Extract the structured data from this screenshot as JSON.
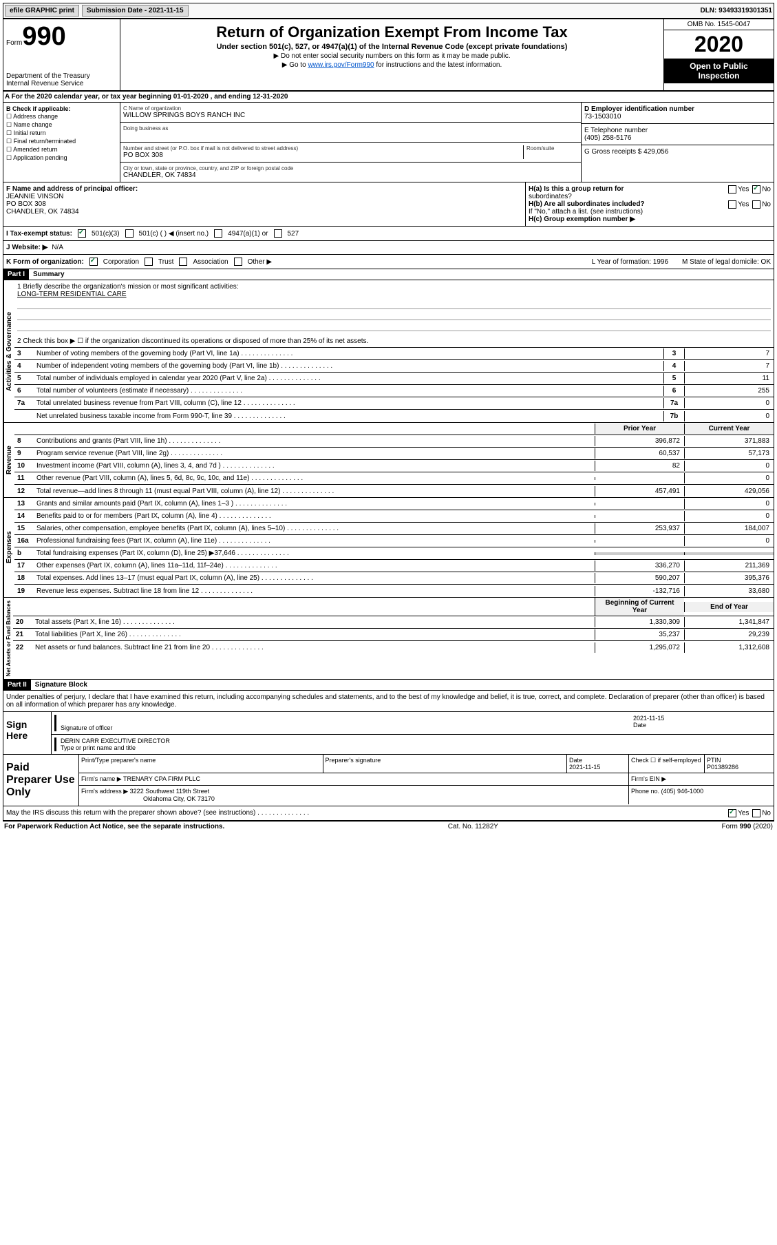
{
  "topbar": {
    "efile": "efile GRAPHIC print",
    "submission_label": "Submission Date - 2021-11-15",
    "dln": "DLN: 93493319301351"
  },
  "header": {
    "form_prefix": "Form",
    "form_num": "990",
    "dept": "Department of the Treasury",
    "irs": "Internal Revenue Service",
    "title": "Return of Organization Exempt From Income Tax",
    "sub": "Under section 501(c), 527, or 4947(a)(1) of the Internal Revenue Code (except private foundations)",
    "note1": "▶ Do not enter social security numbers on this form as it may be made public.",
    "note2_pre": "▶ Go to ",
    "note2_link": "www.irs.gov/Form990",
    "note2_post": " for instructions and the latest information.",
    "omb": "OMB No. 1545-0047",
    "year": "2020",
    "inspect1": "Open to Public",
    "inspect2": "Inspection"
  },
  "row_a": "A For the 2020 calendar year, or tax year beginning 01-01-2020   , and ending 12-31-2020",
  "box_b": {
    "title": "B Check if applicable:",
    "items": [
      "Address change",
      "Name change",
      "Initial return",
      "Final return/terminated",
      "Amended return",
      "Application pending"
    ]
  },
  "box_c": {
    "label_name": "C Name of organization",
    "name": "WILLOW SPRINGS BOYS RANCH INC",
    "dba_label": "Doing business as",
    "addr_label": "Number and street (or P.O. box if mail is not delivered to street address)",
    "room_label": "Room/suite",
    "addr": "PO BOX 308",
    "city_label": "City or town, state or province, country, and ZIP or foreign postal code",
    "city": "CHANDLER, OK  74834"
  },
  "box_d": {
    "label": "D Employer identification number",
    "val": "73-1503010"
  },
  "box_e": {
    "label": "E Telephone number",
    "val": "(405) 258-5176"
  },
  "box_g": {
    "label": "G Gross receipts $ 429,056"
  },
  "box_f": {
    "label": "F  Name and address of principal officer:",
    "name": "JEANNIE VINSON",
    "addr1": "PO BOX 308",
    "addr2": "CHANDLER, OK  74834"
  },
  "box_h": {
    "a": "H(a)  Is this a group return for",
    "a2": "subordinates?",
    "b": "H(b)  Are all subordinates included?",
    "note": "If \"No,\" attach a list. (see instructions)",
    "c": "H(c)  Group exemption number ▶",
    "yes": "Yes",
    "no": "No"
  },
  "row_i": {
    "label": "I  Tax-exempt status:",
    "c3": "501(c)(3)",
    "c": "501(c) (  ) ◀ (insert no.)",
    "a1": "4947(a)(1) or",
    "527": "527"
  },
  "row_j": {
    "label": "J  Website: ▶",
    "val": "N/A"
  },
  "row_k": {
    "label": "K Form of organization:",
    "corp": "Corporation",
    "trust": "Trust",
    "assoc": "Association",
    "other": "Other ▶",
    "l_label": "L Year of formation: 1996",
    "m_label": "M State of legal domicile: OK"
  },
  "part1": {
    "tag": "Part I",
    "title": "Summary"
  },
  "summary": {
    "q1": "1  Briefly describe the organization's mission or most significant activities:",
    "mission": "LONG-TERM RESIDENTIAL CARE",
    "q2": "2  Check this box ▶ ☐  if the organization discontinued its operations or disposed of more than 25% of its net assets.",
    "lines_ag": [
      {
        "n": "3",
        "d": "Number of voting members of the governing body (Part VI, line 1a)",
        "box": "3",
        "v": "7"
      },
      {
        "n": "4",
        "d": "Number of independent voting members of the governing body (Part VI, line 1b)",
        "box": "4",
        "v": "7"
      },
      {
        "n": "5",
        "d": "Total number of individuals employed in calendar year 2020 (Part V, line 2a)",
        "box": "5",
        "v": "11"
      },
      {
        "n": "6",
        "d": "Total number of volunteers (estimate if necessary)",
        "box": "6",
        "v": "255"
      },
      {
        "n": "7a",
        "d": "Total unrelated business revenue from Part VIII, column (C), line 12",
        "box": "7a",
        "v": "0"
      },
      {
        "n": "",
        "d": "Net unrelated business taxable income from Form 990-T, line 39",
        "box": "7b",
        "v": "0"
      }
    ],
    "head_prior": "Prior Year",
    "head_current": "Current Year",
    "rev": [
      {
        "n": "8",
        "d": "Contributions and grants (Part VIII, line 1h)",
        "p": "396,872",
        "c": "371,883"
      },
      {
        "n": "9",
        "d": "Program service revenue (Part VIII, line 2g)",
        "p": "60,537",
        "c": "57,173"
      },
      {
        "n": "10",
        "d": "Investment income (Part VIII, column (A), lines 3, 4, and 7d )",
        "p": "82",
        "c": "0"
      },
      {
        "n": "11",
        "d": "Other revenue (Part VIII, column (A), lines 5, 6d, 8c, 9c, 10c, and 11e)",
        "p": "",
        "c": "0"
      },
      {
        "n": "12",
        "d": "Total revenue—add lines 8 through 11 (must equal Part VIII, column (A), line 12)",
        "p": "457,491",
        "c": "429,056"
      }
    ],
    "exp": [
      {
        "n": "13",
        "d": "Grants and similar amounts paid (Part IX, column (A), lines 1–3 )",
        "p": "",
        "c": "0"
      },
      {
        "n": "14",
        "d": "Benefits paid to or for members (Part IX, column (A), line 4)",
        "p": "",
        "c": "0"
      },
      {
        "n": "15",
        "d": "Salaries, other compensation, employee benefits (Part IX, column (A), lines 5–10)",
        "p": "253,937",
        "c": "184,007"
      },
      {
        "n": "16a",
        "d": "Professional fundraising fees (Part IX, column (A), line 11e)",
        "p": "",
        "c": "0"
      },
      {
        "n": "b",
        "d": "Total fundraising expenses (Part IX, column (D), line 25) ▶37,646",
        "p": "—",
        "c": "—"
      },
      {
        "n": "17",
        "d": "Other expenses (Part IX, column (A), lines 11a–11d, 11f–24e)",
        "p": "336,270",
        "c": "211,369"
      },
      {
        "n": "18",
        "d": "Total expenses. Add lines 13–17 (must equal Part IX, column (A), line 25)",
        "p": "590,207",
        "c": "395,376"
      },
      {
        "n": "19",
        "d": "Revenue less expenses. Subtract line 18 from line 12",
        "p": "-132,716",
        "c": "33,680"
      }
    ],
    "head_begin": "Beginning of Current Year",
    "head_end": "End of Year",
    "net": [
      {
        "n": "20",
        "d": "Total assets (Part X, line 16)",
        "p": "1,330,309",
        "c": "1,341,847"
      },
      {
        "n": "21",
        "d": "Total liabilities (Part X, line 26)",
        "p": "35,237",
        "c": "29,239"
      },
      {
        "n": "22",
        "d": "Net assets or fund balances. Subtract line 21 from line 20",
        "p": "1,295,072",
        "c": "1,312,608"
      }
    ],
    "vtab_ag": "Activities & Governance",
    "vtab_rev": "Revenue",
    "vtab_exp": "Expenses",
    "vtab_net": "Net Assets or Fund Balances"
  },
  "part2": {
    "tag": "Part II",
    "title": "Signature Block",
    "decl": "Under penalties of perjury, I declare that I have examined this return, including accompanying schedules and statements, and to the best of my knowledge and belief, it is true, correct, and complete. Declaration of preparer (other than officer) is based on all information of which preparer has any knowledge."
  },
  "sign": {
    "here": "Sign Here",
    "sig_label": "Signature of officer",
    "date_label": "Date",
    "date": "2021-11-15",
    "name": "DERIN CARR EXECUTIVE DIRECTOR",
    "name_label": "Type or print name and title"
  },
  "prep": {
    "title": "Paid Preparer Use Only",
    "h_name": "Print/Type preparer's name",
    "h_sig": "Preparer's signature",
    "h_date": "Date",
    "date": "2021-11-15",
    "h_self": "Check ☐ if self-employed",
    "h_ptin": "PTIN",
    "ptin": "P01389286",
    "firm_label": "Firm's name   ▶",
    "firm": "TRENARY CPA FIRM PLLC",
    "ein_label": "Firm's EIN ▶",
    "addr_label": "Firm's address ▶",
    "addr1": "3222 Southwest 119th Street",
    "addr2": "Oklahoma City, OK  73170",
    "phone_label": "Phone no. (405) 946-1000",
    "discuss": "May the IRS discuss this return with the preparer shown above? (see instructions)",
    "yes": "Yes",
    "no": "No"
  },
  "footer": {
    "left": "For Paperwork Reduction Act Notice, see the separate instructions.",
    "mid": "Cat. No. 11282Y",
    "right": "Form 990 (2020)"
  }
}
